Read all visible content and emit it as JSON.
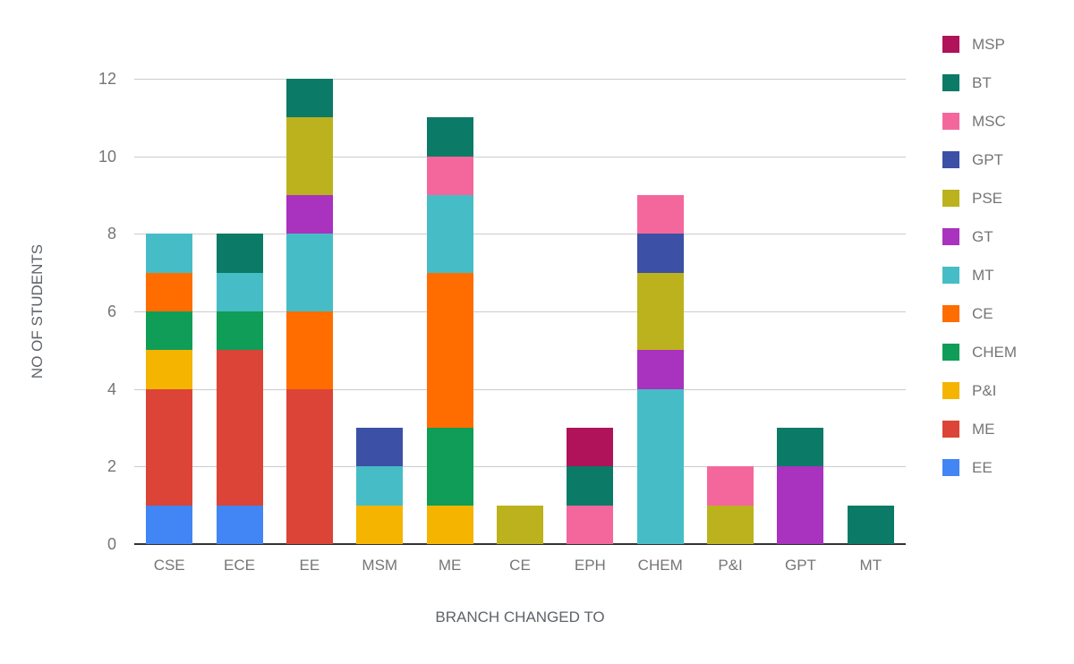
{
  "chart_data": {
    "type": "bar",
    "variant": "stacked-vertical",
    "title": "",
    "xlabel": "BRANCH CHANGED TO",
    "ylabel": "NO OF STUDENTS",
    "categories": [
      "CSE",
      "ECE",
      "EE",
      "MSM",
      "ME",
      "CE",
      "EPH",
      "CHEM",
      "P&I",
      "GPT",
      "MT"
    ],
    "y_ticks": [
      0,
      2,
      4,
      6,
      8,
      10,
      12
    ],
    "ylim": [
      0,
      12
    ],
    "grid": true,
    "legend_position": "right",
    "series": [
      {
        "name": "EE",
        "color": "#4285F4",
        "values": [
          1,
          1,
          0,
          0,
          0,
          0,
          0,
          0,
          0,
          0,
          0
        ]
      },
      {
        "name": "ME",
        "color": "#DB4437",
        "values": [
          3,
          4,
          4,
          0,
          0,
          0,
          0,
          0,
          0,
          0,
          0
        ]
      },
      {
        "name": "P&I",
        "color": "#F4B400",
        "values": [
          1,
          0,
          0,
          1,
          1,
          0,
          0,
          0,
          0,
          0,
          0
        ]
      },
      {
        "name": "CHEM",
        "color": "#0F9D58",
        "values": [
          1,
          1,
          0,
          0,
          2,
          0,
          0,
          0,
          0,
          0,
          0
        ]
      },
      {
        "name": "CE",
        "color": "#FF6D01",
        "values": [
          1,
          0,
          2,
          0,
          4,
          0,
          0,
          0,
          0,
          0,
          0
        ]
      },
      {
        "name": "MT",
        "color": "#46BDC6",
        "values": [
          1,
          1,
          2,
          1,
          2,
          0,
          0,
          4,
          0,
          0,
          0
        ]
      },
      {
        "name": "GT",
        "color": "#A932BF",
        "values": [
          0,
          0,
          1,
          0,
          0,
          0,
          0,
          1,
          0,
          2,
          0
        ]
      },
      {
        "name": "PSE",
        "color": "#BCB21D",
        "values": [
          0,
          0,
          2,
          0,
          0,
          1,
          0,
          2,
          1,
          0,
          0
        ]
      },
      {
        "name": "GPT",
        "color": "#3C50A5",
        "values": [
          0,
          0,
          0,
          1,
          0,
          0,
          0,
          1,
          0,
          0,
          0
        ]
      },
      {
        "name": "MSC",
        "color": "#F4679C",
        "values": [
          0,
          0,
          0,
          0,
          1,
          0,
          1,
          1,
          1,
          0,
          0
        ]
      },
      {
        "name": "BT",
        "color": "#0B7A67",
        "values": [
          0,
          1,
          1,
          0,
          1,
          0,
          1,
          0,
          0,
          1,
          1
        ]
      },
      {
        "name": "MSP",
        "color": "#B01359",
        "values": [
          0,
          0,
          0,
          0,
          0,
          0,
          1,
          0,
          0,
          0,
          0
        ]
      }
    ],
    "totals": {
      "CSE": 8,
      "ECE": 8,
      "EE": 12,
      "MSM": 3,
      "ME": 11,
      "CE": 1,
      "EPH": 3,
      "CHEM": 9,
      "P&I": 2,
      "GPT": 3,
      "MT": 1
    },
    "legend_order": [
      "MSP",
      "BT",
      "MSC",
      "GPT",
      "PSE",
      "GT",
      "MT",
      "CE",
      "CHEM",
      "P&I",
      "ME",
      "EE"
    ]
  }
}
